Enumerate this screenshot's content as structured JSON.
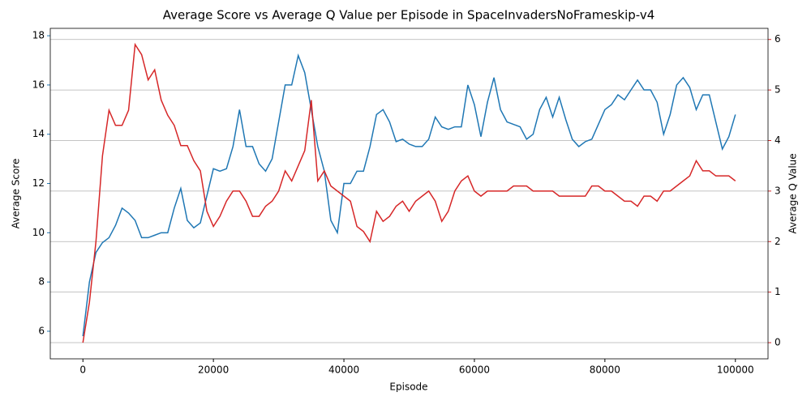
{
  "chart_data": {
    "type": "line",
    "title": "Average Score vs Average Q Value per Episode in SpaceInvadersNoFrameskip-v4",
    "x_label": "Episode",
    "y_label": "Average Score",
    "y2_label": "Average Q Value",
    "x": [
      0,
      1000,
      2000,
      3000,
      4000,
      5000,
      6000,
      7000,
      8000,
      9000,
      10000,
      11000,
      12000,
      13000,
      14000,
      15000,
      16000,
      17000,
      18000,
      19000,
      20000,
      21000,
      22000,
      23000,
      24000,
      25000,
      26000,
      27000,
      28000,
      29000,
      30000,
      31000,
      32000,
      33000,
      34000,
      35000,
      36000,
      37000,
      38000,
      39000,
      40000,
      41000,
      42000,
      43000,
      44000,
      45000,
      46000,
      47000,
      48000,
      49000,
      50000,
      51000,
      52000,
      53000,
      54000,
      55000,
      56000,
      57000,
      58000,
      59000,
      60000,
      61000,
      62000,
      63000,
      64000,
      65000,
      66000,
      67000,
      68000,
      69000,
      70000,
      71000,
      72000,
      73000,
      74000,
      75000,
      76000,
      77000,
      78000,
      79000,
      80000,
      81000,
      82000,
      83000,
      84000,
      85000,
      86000,
      87000,
      88000,
      89000,
      90000,
      91000,
      92000,
      93000,
      94000,
      95000,
      96000,
      97000,
      98000,
      99000,
      100000
    ],
    "series": [
      {
        "name": "Average Score",
        "color": "#1f77b4",
        "values": [
          5.8,
          8.0,
          9.2,
          9.6,
          9.8,
          10.3,
          11.0,
          10.8,
          10.5,
          9.8,
          9.8,
          9.9,
          10.0,
          10.0,
          11.0,
          11.8,
          10.5,
          10.2,
          10.4,
          11.5,
          12.6,
          12.5,
          12.6,
          13.5,
          15.0,
          13.5,
          13.5,
          12.8,
          12.5,
          13.0,
          14.5,
          16.0,
          16.0,
          17.2,
          16.5,
          15.0,
          13.5,
          12.5,
          10.5,
          10.0,
          12.0,
          12.0,
          12.5,
          12.5,
          13.5,
          14.8,
          15.0,
          14.5,
          13.7,
          13.8,
          13.6,
          13.5,
          13.5,
          13.8,
          14.7,
          14.3,
          14.2,
          14.3,
          14.3,
          16.0,
          15.2,
          13.9,
          15.3,
          16.3,
          15.0,
          14.5,
          14.4,
          14.3,
          13.8,
          14.0,
          15.0,
          15.5,
          14.7,
          15.5,
          14.6,
          13.8,
          13.5,
          13.7,
          13.8,
          14.4,
          15.0,
          15.2,
          15.6,
          15.4,
          15.8,
          16.2,
          15.8,
          15.8,
          15.3,
          14.0,
          14.8,
          16.0,
          16.3,
          15.9,
          15.0,
          15.6,
          15.6,
          14.5,
          13.4,
          13.9,
          14.8
        ]
      },
      {
        "name": "Average Q Value",
        "color": "#d62728",
        "axis": "y2",
        "values": [
          0,
          0.8,
          2.0,
          3.7,
          4.6,
          4.3,
          4.3,
          4.6,
          5.9,
          5.7,
          5.2,
          5.4,
          4.8,
          4.5,
          4.3,
          3.9,
          3.9,
          3.6,
          3.4,
          2.6,
          2.3,
          2.5,
          2.8,
          3.0,
          3.0,
          2.8,
          2.5,
          2.5,
          2.7,
          2.8,
          3.0,
          3.4,
          3.2,
          3.5,
          3.8,
          4.8,
          3.2,
          3.4,
          3.1,
          3.0,
          2.9,
          2.8,
          2.3,
          2.2,
          2.0,
          2.6,
          2.4,
          2.5,
          2.7,
          2.8,
          2.6,
          2.8,
          2.9,
          3.0,
          2.8,
          2.4,
          2.6,
          3.0,
          3.2,
          3.3,
          3.0,
          2.9,
          3.0,
          3.0,
          3.0,
          3.0,
          3.1,
          3.1,
          3.1,
          3.0,
          3.0,
          3.0,
          3.0,
          2.9,
          2.9,
          2.9,
          2.9,
          2.9,
          3.1,
          3.1,
          3.0,
          3.0,
          2.9,
          2.8,
          2.8,
          2.7,
          2.9,
          2.9,
          2.8,
          3.0,
          3.0,
          3.1,
          3.2,
          3.3,
          3.6,
          3.4,
          3.4,
          3.3,
          3.3,
          3.3,
          3.2
        ]
      }
    ],
    "xlim": [
      -5000,
      105000
    ],
    "xticks": [
      0,
      20000,
      40000,
      60000,
      80000,
      100000
    ],
    "ylim": [
      4.88,
      18.3
    ],
    "yticks": [
      6,
      8,
      10,
      12,
      14,
      16,
      18
    ],
    "y2lim": [
      -0.32,
      6.22
    ],
    "y2ticks": [
      0,
      1,
      2,
      3,
      4,
      5,
      6
    ],
    "grid": "y2"
  }
}
